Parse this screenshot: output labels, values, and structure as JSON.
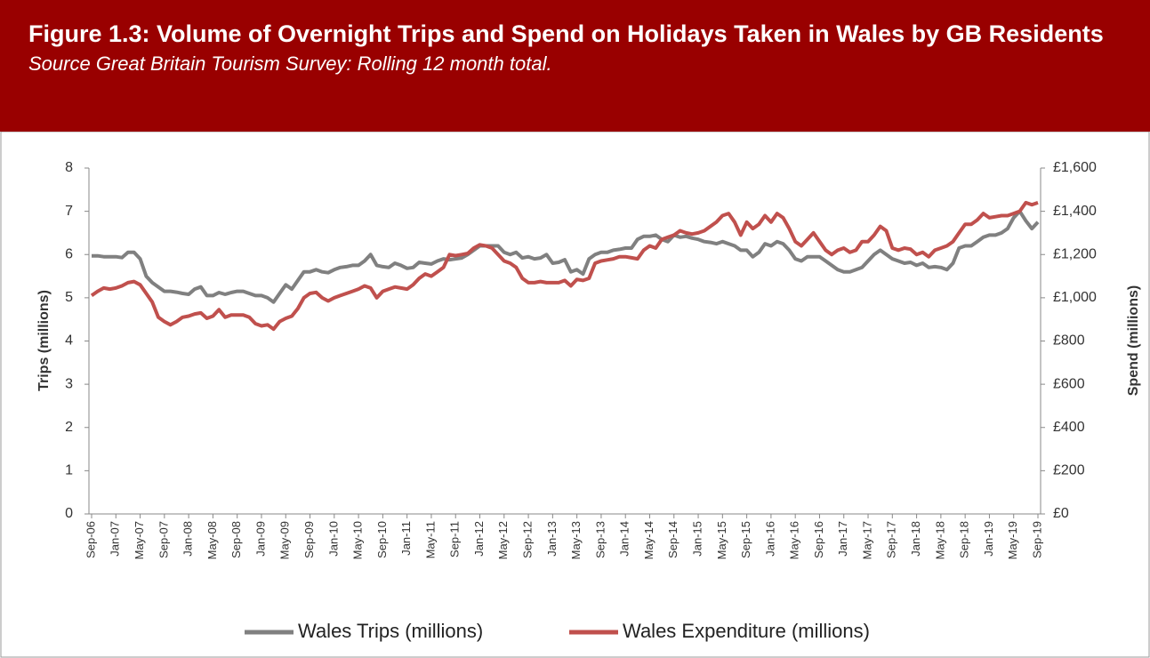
{
  "chart_data": {
    "type": "line",
    "title": "Figure 1.3: Volume of Overnight Trips and Spend on Holidays Taken in Wales by GB Residents",
    "subtitle": "Source Great Britain Tourism Survey: Rolling 12 month total.",
    "ylabel": "Trips (millions)",
    "y2label": "Spend (millions)",
    "categories": [
      "Sep-06",
      null,
      null,
      null,
      "Jan-07",
      null,
      null,
      null,
      "May-07",
      null,
      null,
      null,
      "Sep-07",
      null,
      null,
      null,
      "Jan-08",
      null,
      null,
      null,
      "May-08",
      null,
      null,
      null,
      "Sep-08",
      null,
      null,
      null,
      "Jan-09",
      null,
      null,
      null,
      "May-09",
      null,
      null,
      null,
      "Sep-09",
      null,
      null,
      null,
      "Jan-10",
      null,
      null,
      null,
      "May-10",
      null,
      null,
      null,
      "Sep-10",
      null,
      null,
      null,
      "Jan-11",
      null,
      null,
      null,
      "May-11",
      null,
      null,
      null,
      "Sep-11",
      null,
      null,
      null,
      "Jan-12",
      null,
      null,
      null,
      "May-12",
      null,
      null,
      null,
      "Sep-12",
      null,
      null,
      null,
      "Jan-13",
      null,
      null,
      null,
      "May-13",
      null,
      null,
      null,
      "Sep-13",
      null,
      null,
      null,
      "Jan-14",
      null,
      null,
      null,
      "May-14",
      null,
      null,
      null,
      "Sep-14",
      null,
      null,
      null,
      "Jan-15",
      null,
      null,
      null,
      "May-15",
      null,
      null,
      null,
      "Sep-15",
      null,
      null,
      null,
      "Jan-16",
      null,
      null,
      null,
      "May-16",
      null,
      null,
      null,
      "Sep-16",
      null,
      null,
      null,
      "Jan-17",
      null,
      null,
      null,
      "May-17",
      null,
      null,
      null,
      "Sep-17",
      null,
      null,
      null,
      "Jan-18",
      null,
      null,
      null,
      "May-18",
      null,
      null,
      null,
      "Sep-18",
      null,
      null,
      null,
      "Jan-19",
      null,
      null,
      null,
      "May-19",
      null,
      null,
      null,
      "Sep-19"
    ],
    "series": [
      {
        "name": "Wales Trips (millions)",
        "color": "#808080",
        "values": [
          5.97,
          5.97,
          5.95,
          5.95,
          5.95,
          5.93,
          6.05,
          6.05,
          5.9,
          5.5,
          5.35,
          5.25,
          5.15,
          5.15,
          5.13,
          5.1,
          5.08,
          5.2,
          5.25,
          5.05,
          5.05,
          5.12,
          5.08,
          5.12,
          5.15,
          5.15,
          5.1,
          5.05,
          5.05,
          5.0,
          4.9,
          5.1,
          5.3,
          5.2,
          5.4,
          5.6,
          5.6,
          5.65,
          5.6,
          5.58,
          5.65,
          5.7,
          5.72,
          5.75,
          5.75,
          5.85,
          6.0,
          5.75,
          5.72,
          5.7,
          5.8,
          5.75,
          5.68,
          5.7,
          5.82,
          5.8,
          5.78,
          5.85,
          5.9,
          5.88,
          5.9,
          5.92,
          6.0,
          6.1,
          6.2,
          6.2,
          6.2,
          6.2,
          6.05,
          6.0,
          6.05,
          5.92,
          5.95,
          5.9,
          5.92,
          6.0,
          5.8,
          5.82,
          5.88,
          5.6,
          5.65,
          5.55,
          5.9,
          6.0,
          6.05,
          6.05,
          6.1,
          6.12,
          6.15,
          6.15,
          6.35,
          6.42,
          6.42,
          6.45,
          6.35,
          6.3,
          6.45,
          6.4,
          6.42,
          6.38,
          6.35,
          6.3,
          6.28,
          6.25,
          6.3,
          6.25,
          6.2,
          6.1,
          6.1,
          5.95,
          6.05,
          6.25,
          6.2,
          6.3,
          6.25,
          6.1,
          5.9,
          5.85,
          5.95,
          5.95,
          5.95,
          5.85,
          5.75,
          5.65,
          5.6,
          5.6,
          5.65,
          5.7,
          5.85,
          6.0,
          6.1,
          6.0,
          5.9,
          5.85,
          5.8,
          5.82,
          5.75,
          5.8,
          5.7,
          5.72,
          5.7,
          5.65,
          5.8,
          6.15,
          6.2,
          6.2,
          6.3,
          6.4,
          6.45,
          6.45,
          6.5,
          6.6,
          6.85,
          7.0,
          6.78,
          6.6,
          6.75
        ]
      },
      {
        "name": "Wales Expenditure (millions)",
        "color": "#c0504d",
        "axis": "y2",
        "values": [
          1010,
          1030,
          1045,
          1040,
          1045,
          1055,
          1070,
          1075,
          1060,
          1020,
          980,
          910,
          890,
          875,
          890,
          910,
          915,
          925,
          930,
          905,
          915,
          945,
          910,
          920,
          920,
          920,
          910,
          880,
          870,
          875,
          855,
          890,
          905,
          915,
          950,
          1000,
          1020,
          1025,
          1000,
          985,
          1000,
          1010,
          1020,
          1030,
          1040,
          1055,
          1045,
          1000,
          1030,
          1040,
          1050,
          1045,
          1040,
          1060,
          1090,
          1110,
          1100,
          1120,
          1140,
          1200,
          1195,
          1200,
          1205,
          1230,
          1245,
          1240,
          1230,
          1200,
          1170,
          1160,
          1140,
          1090,
          1070,
          1070,
          1075,
          1070,
          1070,
          1070,
          1080,
          1055,
          1085,
          1080,
          1090,
          1160,
          1170,
          1175,
          1180,
          1190,
          1190,
          1185,
          1180,
          1220,
          1240,
          1230,
          1270,
          1280,
          1290,
          1310,
          1300,
          1295,
          1300,
          1310,
          1330,
          1350,
          1380,
          1390,
          1350,
          1290,
          1350,
          1320,
          1340,
          1380,
          1350,
          1390,
          1370,
          1320,
          1260,
          1240,
          1270,
          1300,
          1260,
          1220,
          1200,
          1220,
          1230,
          1210,
          1220,
          1260,
          1260,
          1290,
          1330,
          1310,
          1230,
          1220,
          1230,
          1225,
          1200,
          1210,
          1190,
          1220,
          1230,
          1240,
          1260,
          1300,
          1340,
          1340,
          1360,
          1390,
          1370,
          1375,
          1380,
          1380,
          1390,
          1400,
          1440,
          1430,
          1440
        ]
      }
    ],
    "ylim": [
      0,
      8
    ],
    "yticks": [
      0,
      1,
      2,
      3,
      4,
      5,
      6,
      7,
      8
    ],
    "y2lim": [
      0,
      1600
    ],
    "y2ticks": [
      {
        "value": 0,
        "label": "£0"
      },
      {
        "value": 200,
        "label": "£200"
      },
      {
        "value": 400,
        "label": "£400"
      },
      {
        "value": 600,
        "label": "£600"
      },
      {
        "value": 800,
        "label": "£800"
      },
      {
        "value": 1000,
        "label": "£1,000"
      },
      {
        "value": 1200,
        "label": "£1,200"
      },
      {
        "value": 1400,
        "label": "£1,400"
      },
      {
        "value": 1600,
        "label": "£1,600"
      }
    ],
    "legend": "bottom"
  }
}
